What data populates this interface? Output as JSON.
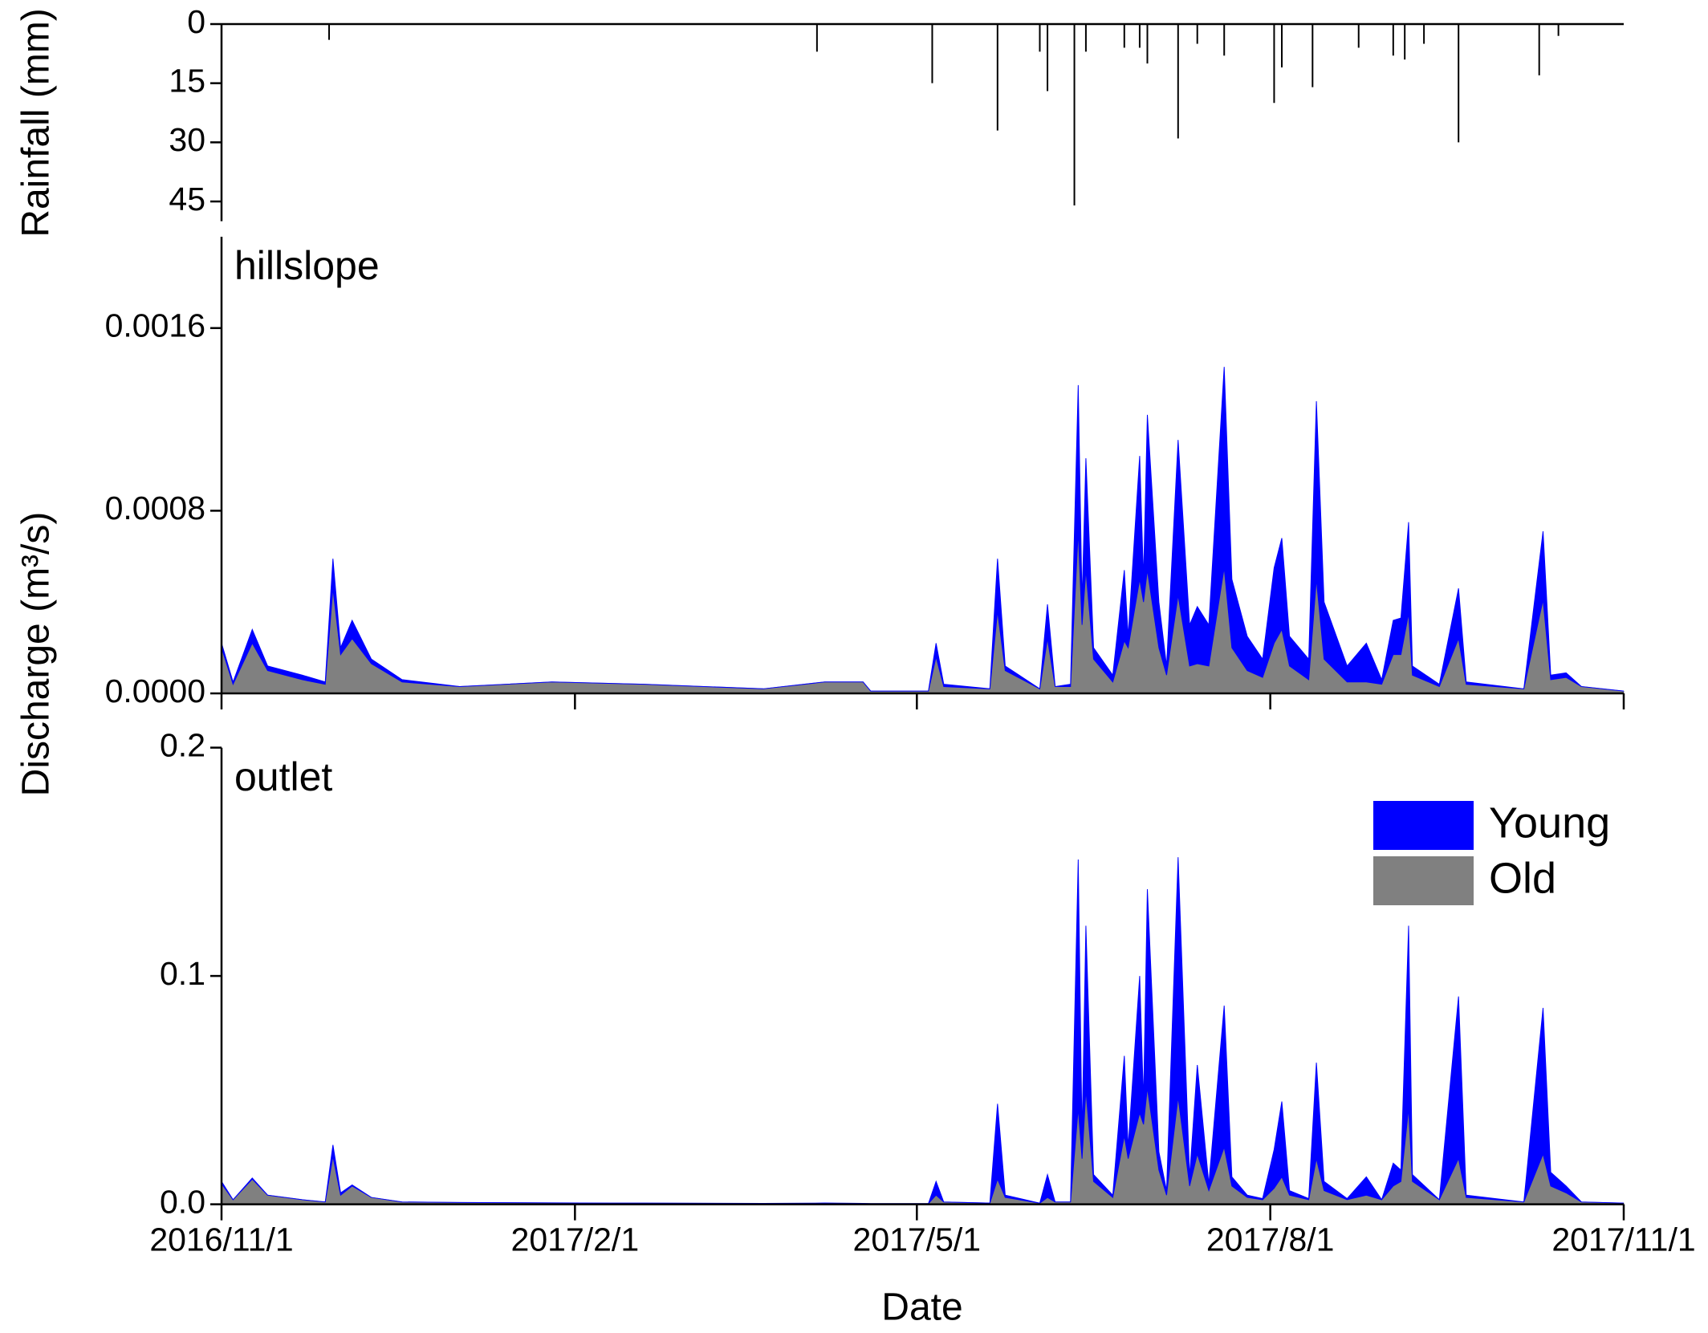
{
  "chart_data": [
    {
      "type": "bar",
      "ylabel": "Rainfall (mm)",
      "y_inverted": true,
      "color": "#000000",
      "xlim": [
        "2016/11/1",
        "2017/11/1"
      ],
      "ylim": [
        0,
        50
      ],
      "yticks": [
        0,
        15,
        30,
        45
      ],
      "x": [
        "2016/11/29",
        "2017/4/5",
        "2017/5/5",
        "2017/5/22",
        "2017/6/2",
        "2017/6/4",
        "2017/6/11",
        "2017/6/14",
        "2017/6/24",
        "2017/6/28",
        "2017/6/30",
        "2017/7/8",
        "2017/7/13",
        "2017/7/20",
        "2017/8/2",
        "2017/8/4",
        "2017/8/12",
        "2017/8/24",
        "2017/9/2",
        "2017/9/5",
        "2017/9/10",
        "2017/9/19",
        "2017/10/10",
        "2017/10/15"
      ],
      "values": [
        4,
        7,
        15,
        27,
        7,
        17,
        46,
        7,
        6,
        6,
        10,
        29,
        5,
        8,
        20,
        11,
        16,
        6,
        8,
        9,
        5,
        30,
        13,
        3
      ]
    },
    {
      "type": "area",
      "label": "hillslope",
      "ylabel": "Discharge (m³/s)",
      "xlim": [
        "2016/11/1",
        "2017/11/1"
      ],
      "ylim": [
        0,
        0.002
      ],
      "yticks": [
        {
          "value": 0,
          "label": "0.0000"
        },
        0.0008,
        0.0016
      ],
      "x": [
        "2016/11/1",
        "2016/11/4",
        "2016/11/9",
        "2016/11/13",
        "2016/11/22",
        "2016/11/28",
        "2016/11/30",
        "2016/12/2",
        "2016/12/5",
        "2016/12/10",
        "2016/12/18",
        "2017/1/2",
        "2017/1/26",
        "2017/2/19",
        "2017/3/22",
        "2017/4/7",
        "2017/4/17",
        "2017/4/19",
        "2017/5/4",
        "2017/5/6",
        "2017/5/8",
        "2017/5/20",
        "2017/5/22",
        "2017/5/24",
        "2017/6/2",
        "2017/6/4",
        "2017/6/6",
        "2017/6/10",
        "2017/6/12",
        "2017/6/13",
        "2017/6/14",
        "2017/6/16",
        "2017/6/21",
        "2017/6/24",
        "2017/6/25",
        "2017/6/28",
        "2017/6/29",
        "2017/6/30",
        "2017/7/3",
        "2017/7/5",
        "2017/7/8",
        "2017/7/11",
        "2017/7/13",
        "2017/7/16",
        "2017/7/20",
        "2017/7/22",
        "2017/7/26",
        "2017/7/30",
        "2017/8/2",
        "2017/8/4",
        "2017/8/6",
        "2017/8/11",
        "2017/8/13",
        "2017/8/15",
        "2017/8/21",
        "2017/8/26",
        "2017/8/30",
        "2017/9/2",
        "2017/9/4",
        "2017/9/6",
        "2017/9/7",
        "2017/9/14",
        "2017/9/19",
        "2017/9/21",
        "2017/10/6",
        "2017/10/11",
        "2017/10/13",
        "2017/10/17",
        "2017/10/21",
        "2017/11/1"
      ],
      "series": [
        {
          "color": "#808080",
          "values": [
            0.0002,
            4e-05,
            0.00022,
            0.0001,
            6e-05,
            4e-05,
            0.00046,
            0.00017,
            0.00024,
            0.00013,
            5e-05,
            3e-05,
            5e-05,
            4e-05,
            2e-05,
            5e-05,
            5e-05,
            1e-05,
            1e-05,
            0.00016,
            3e-05,
            2e-05,
            0.00036,
            0.0001,
            2e-05,
            0.00024,
            3e-05,
            3e-05,
            0.00071,
            0.0003,
            0.00054,
            0.00015,
            5e-05,
            0.00023,
            0.0002,
            0.0005,
            0.0004,
            0.00054,
            0.0002,
            8e-05,
            0.00043,
            0.00012,
            0.00013,
            0.00012,
            0.00055,
            0.0002,
            0.0001,
            7e-05,
            0.00022,
            0.00028,
            0.00012,
            6e-05,
            0.0005,
            0.00015,
            5e-05,
            5e-05,
            4e-05,
            0.00017,
            0.00017,
            0.00035,
            8e-05,
            3e-05,
            0.00024,
            4e-05,
            2e-05,
            0.00041,
            6e-05,
            7e-05,
            3e-05,
            1e-05
          ]
        },
        {
          "color": "#0000ff",
          "values": [
            2e-05,
            1e-05,
            6e-05,
            2e-05,
            2e-05,
            1e-05,
            0.00013,
            3e-05,
            8e-05,
            2e-05,
            1e-05,
            0,
            0,
            0,
            0,
            0,
            0,
            0,
            0,
            6e-05,
            1e-05,
            0,
            0.00023,
            2e-05,
            0,
            0.00015,
            0,
            1e-05,
            0.00064,
            0.0001,
            0.00049,
            5e-05,
            3e-05,
            0.00031,
            5e-05,
            0.00054,
            0.0001,
            0.00068,
            0.0002,
            4e-05,
            0.00068,
            0.00018,
            0.00025,
            0.00018,
            0.00088,
            0.0003,
            0.00015,
            8e-05,
            0.00033,
            0.0004,
            0.00013,
            9e-05,
            0.00078,
            0.00025,
            7e-05,
            0.00017,
            2e-05,
            0.00015,
            0.00016,
            0.0004,
            4e-05,
            1e-05,
            0.00022,
            1e-05,
            0,
            0.0003,
            2e-05,
            2e-05,
            0,
            0
          ]
        }
      ]
    },
    {
      "type": "area",
      "label": "outlet",
      "xlabel": "Date",
      "legend_loc": "upper right",
      "xlim": [
        "2016/11/1",
        "2017/11/1"
      ],
      "xticks": [
        "2016/11/1",
        "2017/2/1",
        "2017/5/1",
        "2017/8/1",
        "2017/11/1"
      ],
      "ylim": [
        0,
        0.2
      ],
      "yticks": [
        {
          "value": 0,
          "label": "0.0"
        },
        0.1,
        0.2
      ],
      "x": [
        "2016/11/1",
        "2016/11/4",
        "2016/11/9",
        "2016/11/13",
        "2016/11/22",
        "2016/11/28",
        "2016/11/30",
        "2016/12/2",
        "2016/12/5",
        "2016/12/10",
        "2016/12/18",
        "2017/1/2",
        "2017/1/26",
        "2017/2/19",
        "2017/3/22",
        "2017/4/7",
        "2017/4/17",
        "2017/4/19",
        "2017/5/4",
        "2017/5/6",
        "2017/5/8",
        "2017/5/20",
        "2017/5/22",
        "2017/5/24",
        "2017/6/2",
        "2017/6/4",
        "2017/6/6",
        "2017/6/10",
        "2017/6/12",
        "2017/6/13",
        "2017/6/14",
        "2017/6/16",
        "2017/6/21",
        "2017/6/24",
        "2017/6/25",
        "2017/6/28",
        "2017/6/29",
        "2017/6/30",
        "2017/7/3",
        "2017/7/5",
        "2017/7/8",
        "2017/7/11",
        "2017/7/13",
        "2017/7/16",
        "2017/7/20",
        "2017/7/22",
        "2017/7/26",
        "2017/7/30",
        "2017/8/2",
        "2017/8/4",
        "2017/8/6",
        "2017/8/11",
        "2017/8/13",
        "2017/8/15",
        "2017/8/21",
        "2017/8/26",
        "2017/8/30",
        "2017/9/2",
        "2017/9/4",
        "2017/9/6",
        "2017/9/7",
        "2017/9/14",
        "2017/9/19",
        "2017/9/21",
        "2017/10/6",
        "2017/10/11",
        "2017/10/13",
        "2017/10/17",
        "2017/10/21",
        "2017/11/1"
      ],
      "series": [
        {
          "name": "Old",
          "color": "#808080",
          "values": [
            0.009,
            0.002,
            0.011,
            0.004,
            0.002,
            0.001,
            0.021,
            0.004,
            0.008,
            0.003,
            0.001,
            0.0008,
            0.0006,
            0.0005,
            0.0004,
            0.0005,
            0.0004,
            0.0003,
            0.0003,
            0.004,
            0.001,
            0.0005,
            0.011,
            0.003,
            0.0005,
            0.003,
            0.001,
            0.001,
            0.042,
            0.02,
            0.05,
            0.01,
            0.003,
            0.03,
            0.02,
            0.04,
            0.035,
            0.051,
            0.015,
            0.004,
            0.047,
            0.008,
            0.022,
            0.006,
            0.025,
            0.008,
            0.003,
            0.002,
            0.007,
            0.012,
            0.004,
            0.002,
            0.02,
            0.006,
            0.002,
            0.004,
            0.002,
            0.008,
            0.01,
            0.042,
            0.01,
            0.002,
            0.02,
            0.003,
            0.001,
            0.022,
            0.008,
            0.005,
            0.001,
            0.0005
          ]
        },
        {
          "name": "Young",
          "color": "#0000ff",
          "values": [
            0.001,
            0,
            0.0005,
            0,
            0,
            0,
            0.005,
            0.001,
            0.0005,
            0,
            0,
            0,
            0,
            0,
            0,
            0,
            0,
            0,
            0,
            0.006,
            0,
            0,
            0.033,
            0.001,
            0,
            0.01,
            0,
            0,
            0.109,
            0.01,
            0.072,
            0.003,
            0.001,
            0.035,
            0.005,
            0.06,
            0.01,
            0.087,
            0.008,
            0.002,
            0.105,
            0.004,
            0.039,
            0.003,
            0.062,
            0.004,
            0.001,
            0.0005,
            0.017,
            0.033,
            0.002,
            0.0005,
            0.042,
            0.004,
            0.0005,
            0.008,
            0,
            0.01,
            0.005,
            0.08,
            0.003,
            0,
            0.071,
            0.001,
            0,
            0.064,
            0.006,
            0.003,
            0,
            0
          ]
        }
      ]
    }
  ]
}
